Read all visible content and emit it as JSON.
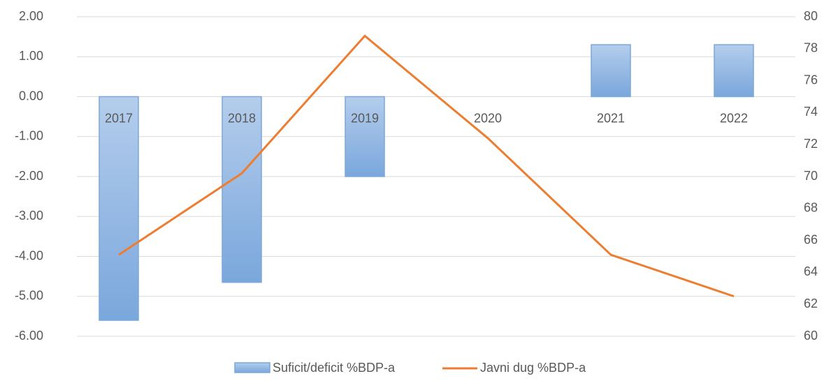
{
  "chart_data": {
    "type": "bar_line",
    "categories": [
      "2017",
      "2018",
      "2019",
      "2020",
      "2021",
      "2022"
    ],
    "series": [
      {
        "name": "Suficit/deficit %BDP-a",
        "type": "bar",
        "color": "#7aa7dc",
        "values": [
          -5.6,
          -4.65,
          -2.0,
          0,
          1.3,
          1.3
        ]
      },
      {
        "name": "Javni dug %BDP-a",
        "type": "line",
        "axis": "y2",
        "color": "#ed7d31",
        "values": [
          65.1,
          70.2,
          78.8,
          72.4,
          65.1,
          62.5
        ]
      }
    ],
    "ylim": [
      -6,
      2
    ],
    "yticks": [
      {
        "value": 2,
        "label": "2.00"
      },
      {
        "value": 1,
        "label": "1.00"
      },
      {
        "value": 0,
        "label": "0.00"
      },
      {
        "value": -1,
        "label": "-1.00"
      },
      {
        "value": -2,
        "label": "-2.00"
      },
      {
        "value": -3,
        "label": "-3.00"
      },
      {
        "value": -4,
        "label": "-4.00"
      },
      {
        "value": -5,
        "label": "-5.00"
      },
      {
        "value": -6,
        "label": "-6.00"
      }
    ],
    "y2lim": [
      60,
      80
    ],
    "y2ticks": [
      60,
      62,
      64,
      66,
      68,
      70,
      72,
      74,
      76,
      78,
      80
    ],
    "grid": true,
    "legend": "bottom"
  }
}
